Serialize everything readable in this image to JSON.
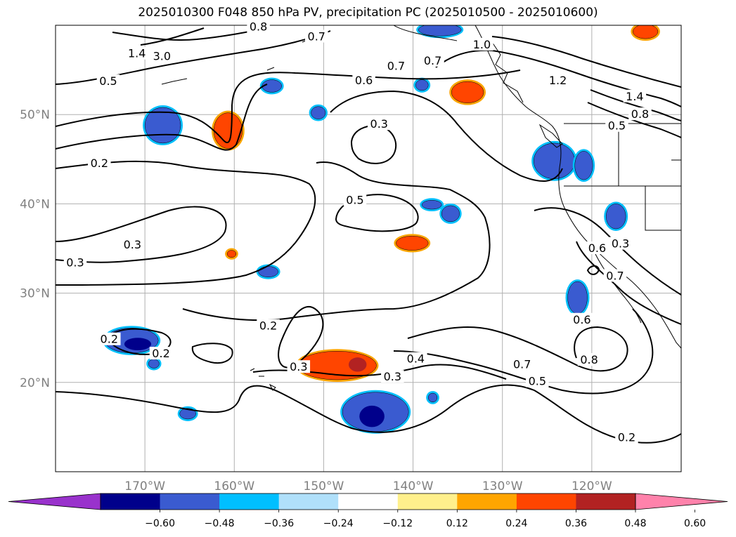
{
  "title": "2025010300 F048 850 hPa PV, precipitation PC (2025010500 - 2025010600)",
  "map": {
    "projection": "equirectangular",
    "lon_range": [
      -180,
      -110
    ],
    "lat_range": [
      10,
      60
    ],
    "lon_ticks": [
      {
        "value": -170,
        "label": "170°W"
      },
      {
        "value": -160,
        "label": "160°W"
      },
      {
        "value": -150,
        "label": "150°W"
      },
      {
        "value": -140,
        "label": "140°W"
      },
      {
        "value": -130,
        "label": "130°W"
      },
      {
        "value": -120,
        "label": "120°W"
      }
    ],
    "lat_ticks": [
      {
        "value": 20,
        "label": "20°N"
      },
      {
        "value": 30,
        "label": "30°N"
      },
      {
        "value": 40,
        "label": "40°N"
      },
      {
        "value": 50,
        "label": "50°N"
      }
    ],
    "grid": true,
    "grid_color": "#b0b0b0",
    "contour_color": "#000000",
    "contour_labels": [
      {
        "text": "1.4",
        "lon": -170.9,
        "lat": 56.8
      },
      {
        "text": "3.0",
        "lon": -168.1,
        "lat": 56.5
      },
      {
        "text": "0.8",
        "lon": -157.3,
        "lat": 59.8
      },
      {
        "text": "0.7",
        "lon": -150.8,
        "lat": 58.7
      },
      {
        "text": "1.0",
        "lon": -132.3,
        "lat": 57.8
      },
      {
        "text": "0.7",
        "lon": -137.8,
        "lat": 56.0
      },
      {
        "text": "0.7",
        "lon": -141.9,
        "lat": 55.4
      },
      {
        "text": "1.2",
        "lon": -123.8,
        "lat": 53.8
      },
      {
        "text": "1.4",
        "lon": -115.2,
        "lat": 52.0
      },
      {
        "text": "0.8",
        "lon": -114.6,
        "lat": 50.0
      },
      {
        "text": "0.5",
        "lon": -117.2,
        "lat": 48.7
      },
      {
        "text": "0.5",
        "lon": -174.1,
        "lat": 53.7
      },
      {
        "text": "0.6",
        "lon": -145.5,
        "lat": 53.8
      },
      {
        "text": "0.3",
        "lon": -143.8,
        "lat": 48.9
      },
      {
        "text": "0.2",
        "lon": -175.1,
        "lat": 44.5
      },
      {
        "text": "0.5",
        "lon": -146.5,
        "lat": 40.4
      },
      {
        "text": "0.3",
        "lon": -171.4,
        "lat": 35.4
      },
      {
        "text": "0.3",
        "lon": -177.8,
        "lat": 33.4
      },
      {
        "text": "0.6",
        "lon": -119.4,
        "lat": 35.0
      },
      {
        "text": "0.3",
        "lon": -116.8,
        "lat": 35.5
      },
      {
        "text": "0.7",
        "lon": -117.4,
        "lat": 31.9
      },
      {
        "text": "0.6",
        "lon": -121.1,
        "lat": 27.0
      },
      {
        "text": "0.2",
        "lon": -174.0,
        "lat": 24.8
      },
      {
        "text": "0.2",
        "lon": -168.2,
        "lat": 23.2
      },
      {
        "text": "0.2",
        "lon": -156.2,
        "lat": 26.3
      },
      {
        "text": "0.3",
        "lon": -152.8,
        "lat": 21.7
      },
      {
        "text": "0.4",
        "lon": -139.7,
        "lat": 22.6
      },
      {
        "text": "0.3",
        "lon": -142.3,
        "lat": 20.6
      },
      {
        "text": "0.7",
        "lon": -127.8,
        "lat": 22.0
      },
      {
        "text": "0.5",
        "lon": -126.1,
        "lat": 20.1
      },
      {
        "text": "0.8",
        "lon": -120.3,
        "lat": 22.5
      },
      {
        "text": "0.2",
        "lon": -116.1,
        "lat": 13.8
      }
    ],
    "precip_blobs": [
      {
        "fill": "#3a5bd0",
        "cx": -168.0,
        "cy": 48.8,
        "rx": 2.0,
        "ry": 2.0
      },
      {
        "fill": "#ff4500",
        "cx": -160.7,
        "cy": 48.2,
        "rx": 1.6,
        "ry": 2.0
      },
      {
        "fill": "#3a5bd0",
        "cx": -155.8,
        "cy": 53.2,
        "rx": 1.1,
        "ry": 0.7
      },
      {
        "fill": "#3a5bd0",
        "cx": -150.6,
        "cy": 50.2,
        "rx": 0.8,
        "ry": 0.7
      },
      {
        "fill": "#3a5bd0",
        "cx": -137.0,
        "cy": 59.5,
        "rx": 2.4,
        "ry": 0.7
      },
      {
        "fill": "#3a5bd0",
        "cx": -139.0,
        "cy": 53.3,
        "rx": 0.7,
        "ry": 0.6
      },
      {
        "fill": "#ff4500",
        "cx": -133.9,
        "cy": 52.5,
        "rx": 1.8,
        "ry": 1.2
      },
      {
        "fill": "#3a5bd0",
        "cx": -124.2,
        "cy": 44.8,
        "rx": 2.3,
        "ry": 2.0
      },
      {
        "fill": "#3a5bd0",
        "cx": -120.9,
        "cy": 44.3,
        "rx": 1.0,
        "ry": 1.6
      },
      {
        "fill": "#ff4500",
        "cx": -114.0,
        "cy": 59.3,
        "rx": 1.4,
        "ry": 0.8
      },
      {
        "fill": "#3a5bd0",
        "cx": -137.9,
        "cy": 39.9,
        "rx": 1.1,
        "ry": 0.5
      },
      {
        "fill": "#3a5bd0",
        "cx": -135.8,
        "cy": 38.9,
        "rx": 1.0,
        "ry": 0.9
      },
      {
        "fill": "#ff4500",
        "cx": -140.1,
        "cy": 35.6,
        "rx": 1.8,
        "ry": 0.8
      },
      {
        "fill": "#3a5bd0",
        "cx": -117.3,
        "cy": 38.6,
        "rx": 1.1,
        "ry": 1.4
      },
      {
        "fill": "#3a5bd0",
        "cx": -121.6,
        "cy": 29.5,
        "rx": 1.1,
        "ry": 1.8
      },
      {
        "fill": "#3a5bd0",
        "cx": -156.2,
        "cy": 32.4,
        "rx": 1.1,
        "ry": 0.6
      },
      {
        "fill": "#ff4500",
        "cx": -160.3,
        "cy": 34.4,
        "rx": 0.5,
        "ry": 0.4
      },
      {
        "fill": "#3a5bd0",
        "cx": -171.5,
        "cy": 24.7,
        "rx": 3.0,
        "ry": 1.4
      },
      {
        "fill": "#3a5bd0",
        "cx": -169.0,
        "cy": 22.1,
        "rx": 0.6,
        "ry": 0.5
      },
      {
        "fill": "#ff4500",
        "cx": -148.5,
        "cy": 21.9,
        "rx": 4.4,
        "ry": 1.6
      },
      {
        "fill": "#3a5bd0",
        "cx": -144.2,
        "cy": 16.7,
        "rx": 3.7,
        "ry": 2.2
      },
      {
        "fill": "#3a5bd0",
        "cx": -165.2,
        "cy": 16.5,
        "rx": 0.9,
        "ry": 0.6
      },
      {
        "fill": "#3a5bd0",
        "cx": -137.8,
        "cy": 18.3,
        "rx": 0.5,
        "ry": 0.5
      }
    ],
    "precip_cores": [
      {
        "fill": "#00008b",
        "cx": -144.6,
        "cy": 16.2,
        "rx": 1.4,
        "ry": 1.2
      },
      {
        "fill": "#00008b",
        "cx": -170.8,
        "cy": 24.3,
        "rx": 1.5,
        "ry": 0.7
      },
      {
        "fill": "#b22222",
        "cx": -146.2,
        "cy": 22.0,
        "rx": 1.0,
        "ry": 0.8
      }
    ]
  },
  "colorbar": {
    "colors": [
      "#9932cc",
      "#00008b",
      "#3a5bd0",
      "#00bfff",
      "#b0e0fa",
      "#ffffff",
      "#fff08c",
      "#ffa500",
      "#ff4500",
      "#b22222",
      "#ff82ab"
    ],
    "tick_labels": [
      "−0.60",
      "−0.48",
      "−0.36",
      "−0.24",
      "−0.12",
      "0.12",
      "0.24",
      "0.36",
      "0.48",
      "0.60"
    ]
  }
}
